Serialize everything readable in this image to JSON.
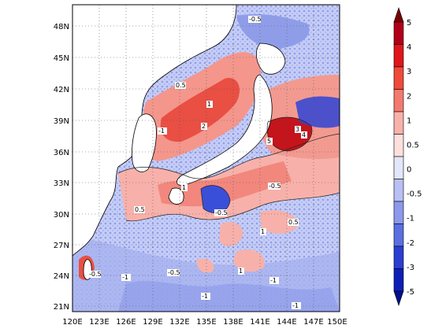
{
  "map": {
    "lat_labels": [
      "48N",
      "45N",
      "42N",
      "39N",
      "36N",
      "33N",
      "30N",
      "27N",
      "24N",
      "21N"
    ],
    "lon_labels": [
      "120E",
      "123E",
      "126E",
      "129E",
      "132E",
      "135E",
      "138E",
      "141E",
      "144E",
      "147E",
      "150E"
    ],
    "lon_range": [
      120,
      150
    ],
    "lat_range": [
      20,
      50
    ],
    "grid": "dotted",
    "contour_labels": [
      "-0.5",
      "0.5",
      "1",
      "2",
      "-1",
      "3",
      "4",
      "5",
      "-0.5",
      "1",
      "-0.5",
      "0.5",
      "1",
      "-1",
      "-0.5",
      "-1",
      "1",
      "0.5",
      "-1",
      "-0.5",
      "-1"
    ]
  },
  "colorbar": {
    "ticks": [
      "5",
      "4",
      "3",
      "2",
      "1",
      "0.5",
      "0",
      "-0.5",
      "-1",
      "-2",
      "-3",
      "-5"
    ],
    "colors": [
      "#7a0000",
      "#b2001a",
      "#e0161b",
      "#f04a3a",
      "#f47a70",
      "#f9b2aa",
      "#fde0dc",
      "#e4e6fb",
      "#b9c0f3",
      "#8c99ec",
      "#5a6fe1",
      "#2a3fd1",
      "#0e1fb8",
      "#000f8c"
    ]
  }
}
